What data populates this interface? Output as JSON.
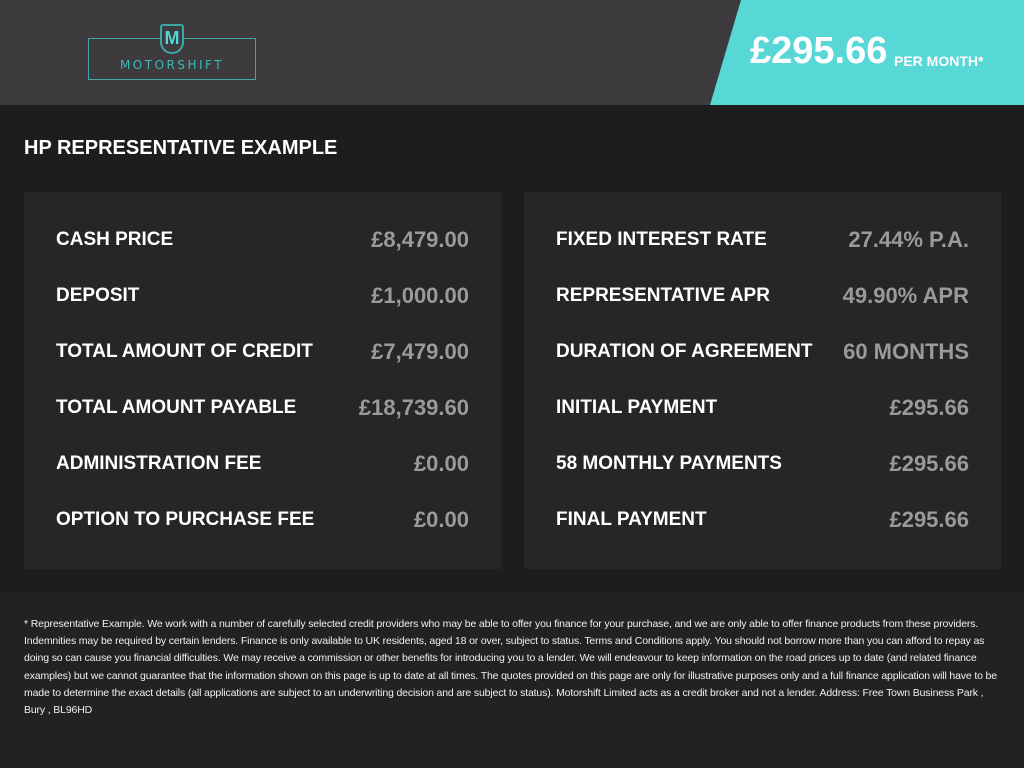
{
  "header": {
    "logo_text": "MOTORSHIFT",
    "logo_letter": "M",
    "price": "£295.66",
    "per_month": "PER MONTH*",
    "accent": "#57d7d6"
  },
  "title": "HP REPRESENTATIVE EXAMPLE",
  "left": [
    {
      "label": "CASH PRICE",
      "value": "£8,479.00"
    },
    {
      "label": "DEPOSIT",
      "value": "£1,000.00"
    },
    {
      "label": "TOTAL AMOUNT OF CREDIT",
      "value": "£7,479.00"
    },
    {
      "label": "TOTAL AMOUNT PAYABLE",
      "value": "£18,739.60"
    },
    {
      "label": "ADMINISTRATION FEE",
      "value": "£0.00"
    },
    {
      "label": "OPTION TO PURCHASE FEE",
      "value": "£0.00"
    }
  ],
  "right": [
    {
      "label": "FIXED INTEREST RATE",
      "value": "27.44% P.A."
    },
    {
      "label": "REPRESENTATIVE APR",
      "value": "49.90% APR"
    },
    {
      "label": "DURATION OF AGREEMENT",
      "value": "60 MONTHS"
    },
    {
      "label": "INITIAL PAYMENT",
      "value": "£295.66"
    },
    {
      "label": "58 MONTHLY PAYMENTS",
      "value": "£295.66"
    },
    {
      "label": "FINAL PAYMENT",
      "value": "£295.66"
    }
  ],
  "disclaimer": "* Representative Example. We work with a number of carefully selected credit providers who may be able to offer you finance for your purchase, and we are only able to offer finance products from these providers. Indemnities may be required by certain lenders. Finance is only available to UK residents, aged 18 or over, subject to status. Terms and Conditions apply. You should not borrow more than you can afford to repay as doing so can cause you financial difficulties. We may receive a commission or other benefits for introducing you to a lender. We will endeavour to keep information on the road prices up to date (and related finance examples) but we cannot guarantee that the information shown on this page is up to date at all times. The quotes provided on this page are only for illustrative purposes only and a full finance application will have to be made to determine the exact details (all applications are subject to an underwriting decision and are subject to status). Motorshift Limited acts as a credit broker and not a lender. Address: Free Town Business Park , Bury , BL96HD"
}
